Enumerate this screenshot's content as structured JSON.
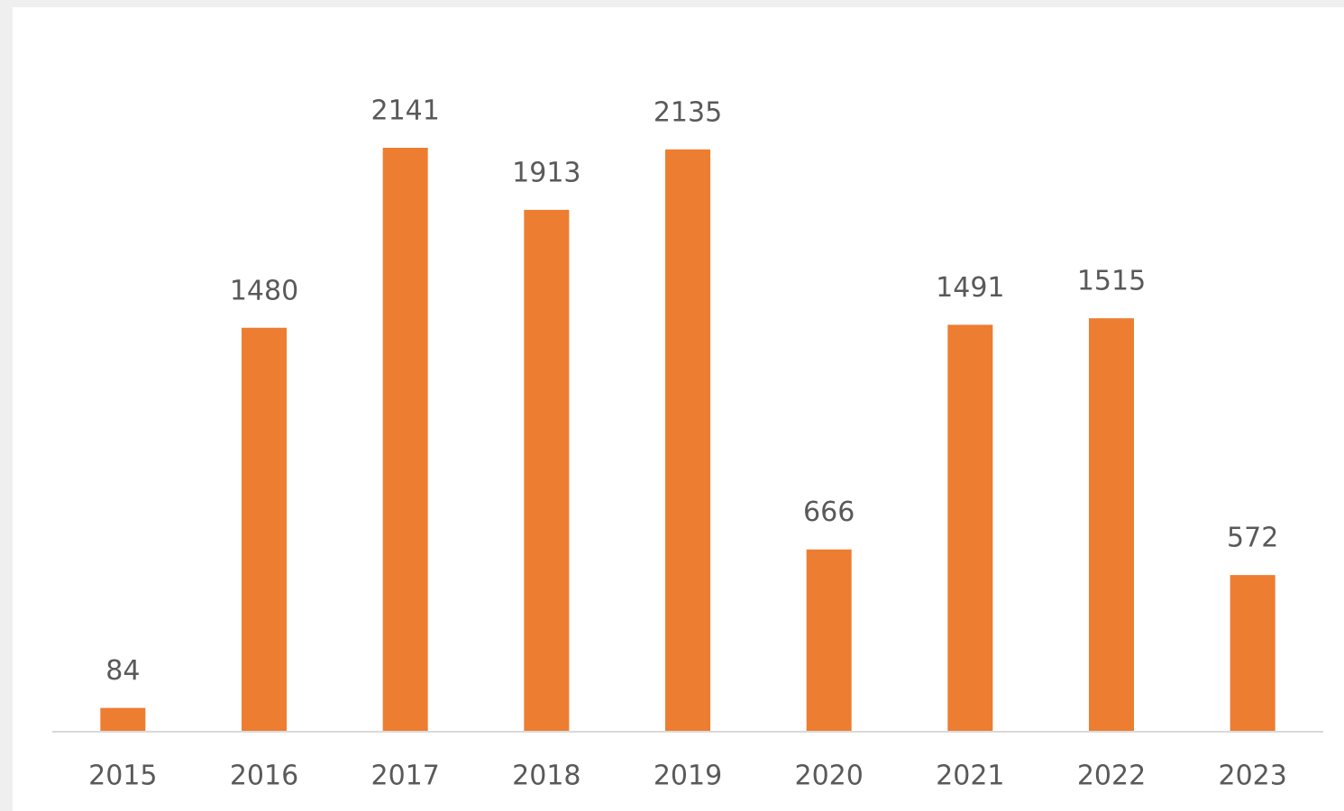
{
  "chart_data": {
    "type": "bar",
    "categories": [
      "2015",
      "2016",
      "2017",
      "2018",
      "2019",
      "2020",
      "2021",
      "2022",
      "2023"
    ],
    "values": [
      84,
      1480,
      2141,
      1913,
      2135,
      666,
      1491,
      1515,
      572
    ],
    "color": "#ed7d31"
  }
}
